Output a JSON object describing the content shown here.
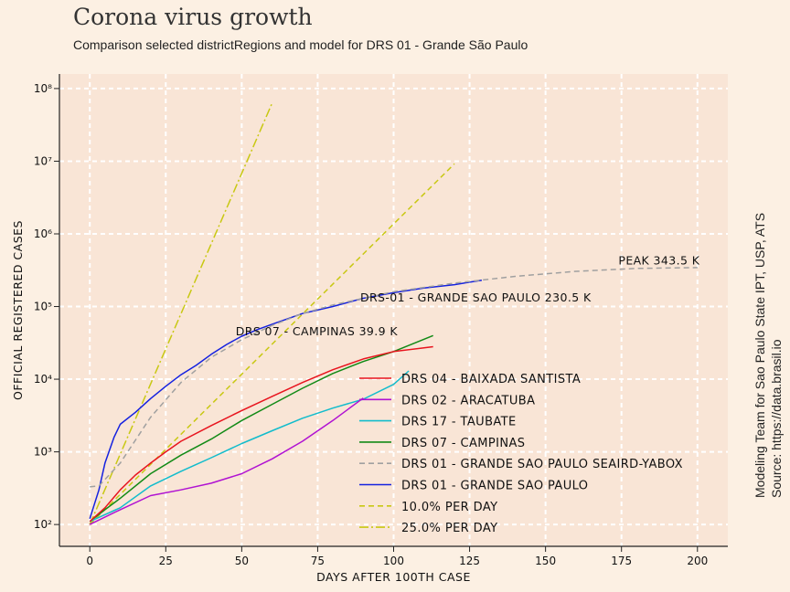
{
  "header": {
    "title": "Corona virus growth",
    "subtitle": "Comparison selected districtRegions and model for DRS 01 - Grande São Paulo"
  },
  "side_note": {
    "line1": "Modeling Team for Sao Paulo State IPT, USP, ATS",
    "line2": "Source: https://data.brasil.io"
  },
  "chart_data": {
    "type": "line",
    "xlabel": "DAYS AFTER 100TH CASE",
    "ylabel": "OFFICIAL REGISTERED CASES",
    "xlim": [
      -10,
      210
    ],
    "ylim_log10": [
      1.7,
      8.2
    ],
    "yscale": "log",
    "grid": true,
    "legend_position": "lower-center",
    "x_ticks": [
      0,
      25,
      50,
      75,
      100,
      125,
      150,
      175,
      200
    ],
    "y_ticks": [
      {
        "value": 100,
        "label": "10²"
      },
      {
        "value": 1000,
        "label": "10³"
      },
      {
        "value": 10000,
        "label": "10⁴"
      },
      {
        "value": 100000,
        "label": "10⁵"
      },
      {
        "value": 1000000,
        "label": "10⁶"
      },
      {
        "value": 10000000,
        "label": "10⁷"
      },
      {
        "value": 100000000,
        "label": "10⁸"
      }
    ],
    "series": [
      {
        "name": "DRS 04 - BAIXADA SANTISTA",
        "color": "#e8141e",
        "dash": "",
        "x": [
          0,
          5,
          10,
          15,
          20,
          25,
          30,
          40,
          50,
          60,
          70,
          80,
          90,
          100,
          110,
          113
        ],
        "y": [
          110,
          170,
          300,
          480,
          700,
          1000,
          1400,
          2300,
          3700,
          5800,
          9000,
          13500,
          19000,
          24000,
          27000,
          28000
        ]
      },
      {
        "name": "DRS 02 - ARACATUBA",
        "color": "#b012d2",
        "dash": "",
        "x": [
          0,
          10,
          20,
          30,
          40,
          50,
          60,
          70,
          80,
          90
        ],
        "y": [
          100,
          160,
          250,
          300,
          370,
          500,
          800,
          1400,
          2700,
          5500
        ]
      },
      {
        "name": "DRS 17 - TAUBATE",
        "color": "#12bccc",
        "dash": "",
        "x": [
          0,
          10,
          20,
          30,
          40,
          50,
          60,
          70,
          80,
          90,
          100,
          105
        ],
        "y": [
          110,
          170,
          340,
          540,
          830,
          1300,
          1950,
          2900,
          4000,
          5300,
          8500,
          13000
        ]
      },
      {
        "name": "DRS 07 - CAMPINAS",
        "color": "#128a16",
        "dash": "",
        "x": [
          0,
          5,
          10,
          20,
          30,
          40,
          50,
          60,
          70,
          80,
          90,
          100,
          113
        ],
        "y": [
          110,
          160,
          230,
          500,
          900,
          1500,
          2700,
          4500,
          7500,
          12000,
          17500,
          24000,
          39900
        ]
      },
      {
        "name": "DRS 01 - GRANDE SAO PAULO SEAIRD-YABOX",
        "color": "#a0a0a0",
        "dash": "6,4",
        "x": [
          0,
          3,
          10,
          20,
          30,
          40,
          50,
          60,
          70,
          80,
          90,
          100,
          120,
          140,
          160,
          180,
          200
        ],
        "y": [
          330,
          340,
          700,
          3000,
          9000,
          20000,
          35000,
          55000,
          80000,
          105000,
          130000,
          160000,
          210000,
          260000,
          305000,
          335000,
          343500
        ]
      },
      {
        "name": "DRS 01 - GRANDE SAO PAULO",
        "color": "#1421e0",
        "dash": "",
        "x": [
          0,
          3,
          5,
          8,
          10,
          15,
          20,
          25,
          30,
          35,
          40,
          45,
          50,
          55,
          60,
          70,
          80,
          90,
          100,
          110,
          120,
          129
        ],
        "y": [
          120,
          300,
          700,
          1600,
          2400,
          3500,
          5400,
          8000,
          11500,
          15500,
          22000,
          30000,
          39000,
          48000,
          57000,
          80000,
          100000,
          130000,
          155000,
          180000,
          200000,
          230500
        ]
      },
      {
        "name": "10.0% PER DAY",
        "color": "#c8c812",
        "dash": "6,4",
        "x": [
          0,
          120
        ],
        "y": [
          100,
          9200000
        ]
      },
      {
        "name": "25.0% PER DAY",
        "color": "#c8c812",
        "dash": "10,3,2,3",
        "x": [
          0,
          60
        ],
        "y": [
          100,
          63000000
        ]
      }
    ],
    "annotations": [
      {
        "text": "PEAK 343.5 K",
        "x": 174,
        "y": 380000
      },
      {
        "text": "DRS-01 - GRANDE SAO PAULO 230.5 K",
        "x": 89,
        "y": 118000
      },
      {
        "text": "DRS 07 - CAMPINAS 39.9 K",
        "x": 48,
        "y": 40000
      }
    ]
  }
}
